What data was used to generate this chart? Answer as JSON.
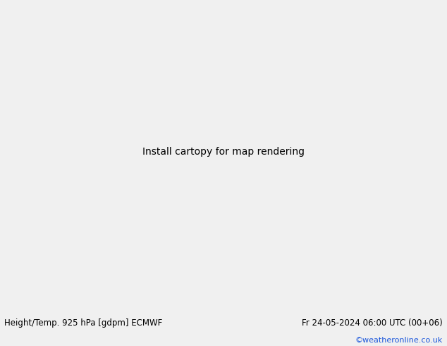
{
  "title_left": "Height/Temp. 925 hPa [gdpm] ECMWF",
  "title_right": "Fr 24-05-2024 06:00 UTC (00+06)",
  "credit": "©weatheronline.co.uk",
  "bg_color": "#d8d8d8",
  "land_color": "#c8e8a0",
  "land_color_dark": "#a8c880",
  "ocean_color": "#d8d8d8",
  "grid_color": "#aaaaaa",
  "bottom_bar_color": "#f0f0f0",
  "bottom_text_color": "#000000",
  "credit_color": "#1a56db",
  "figsize": [
    6.34,
    4.9
  ],
  "dpi": 100,
  "map_extent": [
    -85,
    -5,
    5,
    35
  ],
  "grid_lons": [
    -80,
    -70,
    -60,
    -50,
    -40,
    -30,
    -20,
    -10
  ],
  "grid_lats": [
    10,
    15,
    20,
    25,
    30
  ],
  "black_line_color": "#000000",
  "orange_color": "#ff8800",
  "red_color": "#dd0000",
  "magenta_color": "#cc00aa",
  "green_color": "#88cc00",
  "teal_color": "#00aaaa",
  "gray_color": "#888888"
}
